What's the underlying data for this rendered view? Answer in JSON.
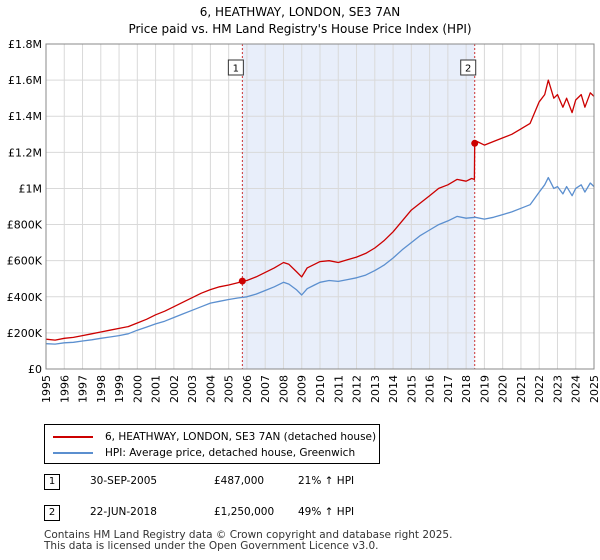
{
  "chart_data": {
    "type": "line",
    "title": "6, HEATHWAY, LONDON, SE3 7AN",
    "subtitle": "Price paid vs. HM Land Registry's House Price Index (HPI)",
    "xlabel": "",
    "ylabel": "",
    "xlim": [
      1995,
      2025
    ],
    "ylim": [
      0,
      1800000
    ],
    "y_ticks": [
      0,
      200000,
      400000,
      600000,
      800000,
      1000000,
      1200000,
      1400000,
      1600000,
      1800000
    ],
    "y_tick_labels": [
      "£0",
      "£200K",
      "£400K",
      "£600K",
      "£800K",
      "£1M",
      "£1.2M",
      "£1.4M",
      "£1.6M",
      "£1.8M"
    ],
    "x_ticks": [
      1995,
      1996,
      1997,
      1998,
      1999,
      2000,
      2001,
      2002,
      2003,
      2004,
      2005,
      2006,
      2007,
      2008,
      2009,
      2010,
      2011,
      2012,
      2013,
      2014,
      2015,
      2016,
      2017,
      2018,
      2019,
      2020,
      2021,
      2022,
      2023,
      2024,
      2025
    ],
    "x_tick_labels": [
      "1995",
      "1996",
      "1997",
      "1998",
      "1999",
      "2000",
      "2001",
      "2002",
      "2003",
      "2004",
      "2005",
      "2006",
      "2007",
      "2008",
      "2009",
      "2010",
      "2011",
      "2012",
      "2013",
      "2014",
      "2015",
      "2016",
      "2017",
      "2018",
      "2019",
      "2020",
      "2021",
      "2022",
      "2023",
      "2024",
      "2025"
    ],
    "grid": true,
    "shaded_span": [
      2005.75,
      2018.47
    ],
    "series": [
      {
        "name": "6, HEATHWAY, LONDON, SE3 7AN (detached house)",
        "color": "#cc0000",
        "x": [
          1995,
          1995.5,
          1996,
          1996.5,
          1997,
          1997.5,
          1998,
          1998.5,
          1999,
          1999.5,
          2000,
          2000.5,
          2001,
          2001.5,
          2002,
          2002.5,
          2003,
          2003.5,
          2004,
          2004.5,
          2005,
          2005.5,
          2005.75,
          2006,
          2006.5,
          2007,
          2007.5,
          2008,
          2008.3,
          2008.7,
          2009,
          2009.3,
          2009.7,
          2010,
          2010.5,
          2011,
          2011.5,
          2012,
          2012.5,
          2013,
          2013.5,
          2014,
          2014.5,
          2015,
          2015.5,
          2016,
          2016.5,
          2017,
          2017.5,
          2018,
          2018.3,
          2018.45,
          2018.47,
          2018.6,
          2019,
          2019.5,
          2020,
          2020.5,
          2021,
          2021.5,
          2022,
          2022.3,
          2022.5,
          2022.8,
          2023,
          2023.3,
          2023.5,
          2023.8,
          2024,
          2024.3,
          2024.5,
          2024.8,
          2025
        ],
        "values": [
          165000,
          160000,
          170000,
          175000,
          185000,
          195000,
          205000,
          215000,
          225000,
          235000,
          255000,
          275000,
          300000,
          320000,
          345000,
          370000,
          395000,
          420000,
          440000,
          455000,
          465000,
          478000,
          487000,
          490000,
          510000,
          535000,
          560000,
          590000,
          580000,
          540000,
          510000,
          560000,
          580000,
          595000,
          600000,
          590000,
          605000,
          620000,
          640000,
          670000,
          710000,
          760000,
          820000,
          880000,
          920000,
          960000,
          1000000,
          1020000,
          1050000,
          1040000,
          1055000,
          1050000,
          1250000,
          1260000,
          1240000,
          1260000,
          1280000,
          1300000,
          1330000,
          1360000,
          1480000,
          1520000,
          1600000,
          1500000,
          1520000,
          1450000,
          1500000,
          1420000,
          1490000,
          1520000,
          1450000,
          1530000,
          1510000
        ]
      },
      {
        "name": "HPI: Average price, detached house, Greenwich",
        "color": "#5b8fcf",
        "x": [
          1995,
          1995.5,
          1996,
          1996.5,
          1997,
          1997.5,
          1998,
          1998.5,
          1999,
          1999.5,
          2000,
          2000.5,
          2001,
          2001.5,
          2002,
          2002.5,
          2003,
          2003.5,
          2004,
          2004.5,
          2005,
          2005.5,
          2006,
          2006.5,
          2007,
          2007.5,
          2008,
          2008.3,
          2008.7,
          2009,
          2009.3,
          2009.7,
          2010,
          2010.5,
          2011,
          2011.5,
          2012,
          2012.5,
          2013,
          2013.5,
          2014,
          2014.5,
          2015,
          2015.5,
          2016,
          2016.5,
          2017,
          2017.5,
          2018,
          2018.5,
          2019,
          2019.5,
          2020,
          2020.5,
          2021,
          2021.5,
          2022,
          2022.3,
          2022.5,
          2022.8,
          2023,
          2023.3,
          2023.5,
          2023.8,
          2024,
          2024.3,
          2024.5,
          2024.8,
          2025
        ],
        "values": [
          140000,
          138000,
          145000,
          148000,
          155000,
          162000,
          170000,
          177000,
          185000,
          195000,
          215000,
          232000,
          250000,
          265000,
          285000,
          305000,
          325000,
          345000,
          365000,
          375000,
          385000,
          393000,
          400000,
          415000,
          435000,
          455000,
          480000,
          470000,
          440000,
          410000,
          445000,
          465000,
          480000,
          490000,
          485000,
          495000,
          505000,
          520000,
          545000,
          575000,
          615000,
          660000,
          700000,
          740000,
          770000,
          800000,
          820000,
          845000,
          835000,
          840000,
          830000,
          840000,
          855000,
          870000,
          890000,
          910000,
          980000,
          1020000,
          1060000,
          1000000,
          1010000,
          970000,
          1010000,
          960000,
          1000000,
          1020000,
          980000,
          1030000,
          1010000
        ]
      }
    ],
    "sales": [
      {
        "label": "1",
        "date": "30-SEP-2005",
        "x": 2005.75,
        "price": "£487,000",
        "value": 487000,
        "hpi": "21% ↑ HPI"
      },
      {
        "label": "2",
        "date": "22-JUN-2018",
        "x": 2018.47,
        "price": "£1,250,000",
        "value": 1250000,
        "hpi": "49% ↑ HPI"
      }
    ]
  },
  "legend": {
    "property_label": "6, HEATHWAY, LONDON, SE3 7AN (detached house)",
    "hpi_label": "HPI: Average price, detached house, Greenwich"
  },
  "footer": {
    "line1": "Contains HM Land Registry data © Crown copyright and database right 2025.",
    "line2": "This data is licensed under the Open Government Licence v3.0."
  }
}
